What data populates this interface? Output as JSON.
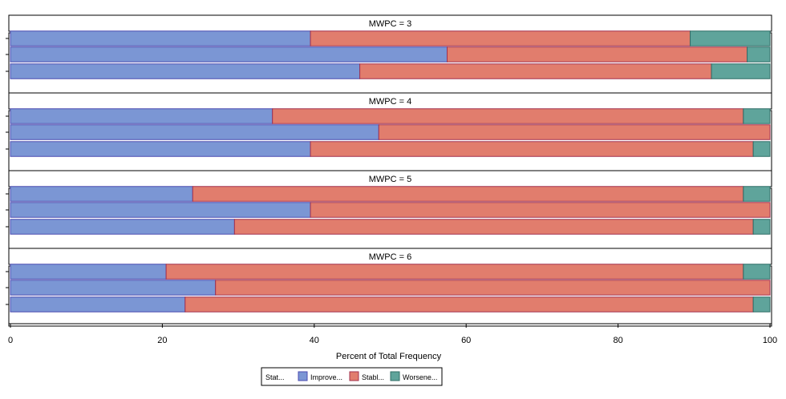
{
  "chart_data": {
    "type": "bar",
    "orientation": "horizontal",
    "stacked": true,
    "xlabel": "Percent of Total Frequency",
    "xlim": [
      0,
      100
    ],
    "xticks": [
      0,
      20,
      40,
      60,
      80,
      100
    ],
    "grid": false,
    "legend": {
      "placement": "bottom-center",
      "title": "Stat...",
      "entries": [
        "Improve...",
        "Stabl...",
        "Worsene..."
      ]
    },
    "series_colors": [
      "#7b96d4",
      "#e17d6d",
      "#5fa49b"
    ],
    "panels": [
      {
        "title": "MWPC = 3",
        "bars": [
          {
            "values": [
              39.5,
              50.0,
              10.5
            ]
          },
          {
            "values": [
              57.5,
              39.5,
              3.0
            ]
          },
          {
            "values": [
              46.0,
              46.3,
              7.7
            ]
          }
        ]
      },
      {
        "title": "MWPC = 4",
        "bars": [
          {
            "values": [
              34.5,
              62.0,
              3.5
            ]
          },
          {
            "values": [
              48.5,
              51.5,
              0.0
            ]
          },
          {
            "values": [
              39.5,
              58.3,
              2.2
            ]
          }
        ]
      },
      {
        "title": "MWPC = 5",
        "bars": [
          {
            "values": [
              24.0,
              72.5,
              3.5
            ]
          },
          {
            "values": [
              39.5,
              60.5,
              0.0
            ]
          },
          {
            "values": [
              29.5,
              68.3,
              2.2
            ]
          }
        ]
      },
      {
        "title": "MWPC = 6",
        "bars": [
          {
            "values": [
              20.5,
              76.0,
              3.5
            ]
          },
          {
            "values": [
              27.0,
              73.0,
              0.0
            ]
          },
          {
            "values": [
              23.0,
              74.8,
              2.2
            ]
          }
        ]
      }
    ]
  }
}
